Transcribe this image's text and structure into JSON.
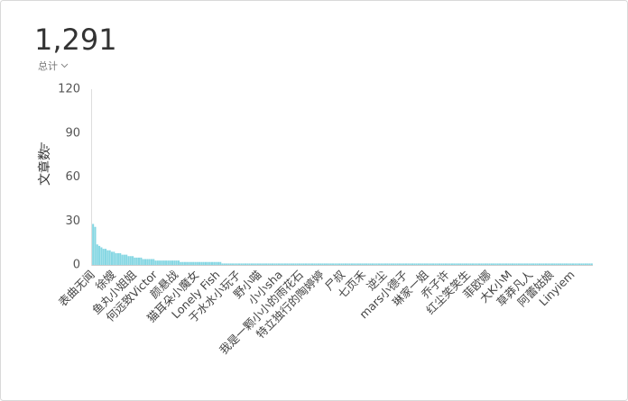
{
  "headline": {
    "value": "1,291",
    "caption": "总计"
  },
  "chart_data": {
    "type": "bar",
    "y_label": "文章数",
    "color": "#86d7e3",
    "ylim": [
      0,
      120
    ],
    "yticks": [
      0,
      30,
      60,
      90,
      120
    ],
    "grid": false,
    "categories": [
      "表曲无闻",
      null,
      null,
      null,
      null,
      null,
      null,
      null,
      null,
      null,
      "徐嫂",
      null,
      null,
      null,
      null,
      null,
      null,
      null,
      null,
      null,
      "鱼丸小姐姐",
      null,
      null,
      null,
      null,
      null,
      null,
      null,
      null,
      null,
      "何远致Victor",
      null,
      null,
      null,
      null,
      null,
      null,
      null,
      null,
      null,
      "颜悬战",
      null,
      null,
      null,
      null,
      null,
      null,
      null,
      null,
      null,
      "猫耳朵小魔女",
      null,
      null,
      null,
      null,
      null,
      null,
      null,
      null,
      null,
      "Lonely Fish",
      null,
      null,
      null,
      null,
      null,
      null,
      null,
      null,
      null,
      "于水水小玩子",
      null,
      null,
      null,
      null,
      null,
      null,
      null,
      null,
      null,
      "野小喵",
      null,
      null,
      null,
      null,
      null,
      null,
      null,
      null,
      null,
      "小小sha",
      null,
      null,
      null,
      null,
      null,
      null,
      null,
      null,
      null,
      "我是一颗小小的雨花石",
      null,
      null,
      null,
      null,
      null,
      null,
      null,
      null,
      null,
      "特立独行的陶婷婷",
      null,
      null,
      null,
      null,
      null,
      null,
      null,
      null,
      null,
      "尸叔",
      null,
      null,
      null,
      null,
      null,
      null,
      null,
      null,
      null,
      "七页禾",
      null,
      null,
      null,
      null,
      null,
      null,
      null,
      null,
      null,
      "逆尘",
      null,
      null,
      null,
      null,
      null,
      null,
      null,
      null,
      null,
      "mars小德子",
      null,
      null,
      null,
      null,
      null,
      null,
      null,
      null,
      null,
      "琳家一姐",
      null,
      null,
      null,
      null,
      null,
      null,
      null,
      null,
      null,
      "乔子许",
      null,
      null,
      null,
      null,
      null,
      null,
      null,
      null,
      null,
      "红尘笑笑生",
      null,
      null,
      null,
      null,
      null,
      null,
      null,
      null,
      null,
      "菲欧娜",
      null,
      null,
      null,
      null,
      null,
      null,
      null,
      null,
      null,
      "大K小M",
      null,
      null,
      null,
      null,
      null,
      null,
      null,
      null,
      null,
      "草莽凡人",
      null,
      null,
      null,
      null,
      null,
      null,
      null,
      null,
      null,
      "阿蕾姑娘",
      null,
      null,
      null,
      null,
      null,
      null,
      null,
      null,
      null,
      "Linyiem",
      null,
      null,
      null,
      null,
      null,
      null,
      null,
      null,
      null
    ],
    "values": [
      28,
      26,
      14,
      13,
      12,
      11,
      11,
      10,
      10,
      9,
      9,
      8,
      8,
      8,
      7,
      7,
      7,
      6,
      6,
      6,
      5,
      5,
      5,
      5,
      4,
      4,
      4,
      4,
      4,
      4,
      3,
      3,
      3,
      3,
      3,
      3,
      3,
      3,
      3,
      3,
      3,
      3,
      2,
      2,
      2,
      2,
      2,
      2,
      2,
      2,
      2,
      2,
      2,
      2,
      2,
      2,
      2,
      2,
      2,
      2,
      2,
      2,
      1,
      1,
      1,
      1,
      1,
      1,
      1,
      1,
      1,
      1,
      1,
      1,
      1,
      1,
      1,
      1,
      1,
      1,
      1,
      1,
      1,
      1,
      1,
      1,
      1,
      1,
      1,
      1,
      1,
      1,
      1,
      1,
      1,
      1,
      1,
      1,
      1,
      1,
      1,
      1,
      1,
      1,
      1,
      1,
      1,
      1,
      1,
      1,
      1,
      1,
      1,
      1,
      1,
      1,
      1,
      1,
      1,
      1,
      1,
      1,
      1,
      1,
      1,
      1,
      1,
      1,
      1,
      1,
      1,
      1,
      1,
      1,
      1,
      1,
      1,
      1,
      1,
      1,
      1,
      1,
      1,
      1,
      1,
      1,
      1,
      1,
      1,
      1,
      1,
      1,
      1,
      1,
      1,
      1,
      1,
      1,
      1,
      1,
      1,
      1,
      1,
      1,
      1,
      1,
      1,
      1,
      1,
      1,
      1,
      1,
      1,
      1,
      1,
      1,
      1,
      1,
      1,
      1,
      1,
      1,
      1,
      1,
      1,
      1,
      1,
      1,
      1,
      1,
      1,
      1,
      1,
      1,
      1,
      1,
      1,
      1,
      1,
      1,
      1,
      1,
      1,
      1,
      1,
      1,
      1,
      1,
      1,
      1,
      1,
      1,
      1,
      1,
      1,
      1,
      1,
      1,
      1,
      1,
      1,
      1,
      1,
      1,
      1,
      1,
      1,
      1,
      1,
      1,
      1,
      1,
      1,
      1,
      1,
      1,
      1,
      1,
      1,
      1
    ]
  }
}
